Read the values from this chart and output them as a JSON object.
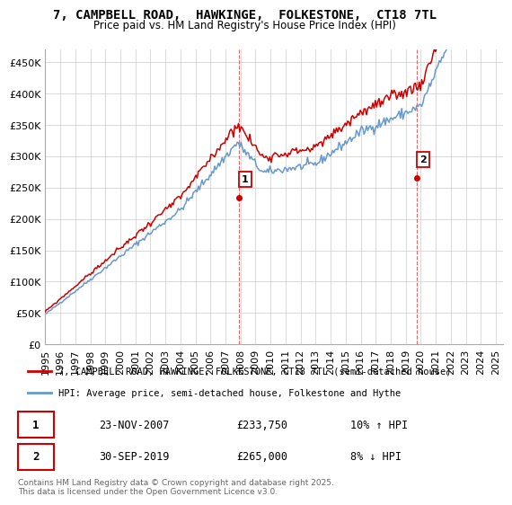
{
  "title": "7, CAMPBELL ROAD,  HAWKINGE,  FOLKESTONE,  CT18 7TL",
  "subtitle": "Price paid vs. HM Land Registry's House Price Index (HPI)",
  "y_ticks": [
    0,
    50000,
    100000,
    150000,
    200000,
    250000,
    300000,
    350000,
    400000,
    450000
  ],
  "ylim": [
    0,
    470000
  ],
  "xlim_start": 1995,
  "xlim_end": 2025.5,
  "legend_line1": "7, CAMPBELL ROAD, HAWKINGE, FOLKESTONE, CT18 7TL (semi-detached house)",
  "legend_line2": "HPI: Average price, semi-detached house, Folkestone and Hythe",
  "legend_color1": "#cc0000",
  "legend_color2": "#6699cc",
  "marker1_x": 2007.9,
  "marker1_y": 233750,
  "marker1_label": "1",
  "marker1_date": "23-NOV-2007",
  "marker1_price": "£233,750",
  "marker1_hpi": "10% ↑ HPI",
  "marker2_x": 2019.75,
  "marker2_y": 265000,
  "marker2_label": "2",
  "marker2_date": "30-SEP-2019",
  "marker2_price": "£265,000",
  "marker2_hpi": "8% ↓ HPI",
  "footnote": "Contains HM Land Registry data © Crown copyright and database right 2025.\nThis data is licensed under the Open Government Licence v3.0.",
  "grid_color": "#cccccc"
}
